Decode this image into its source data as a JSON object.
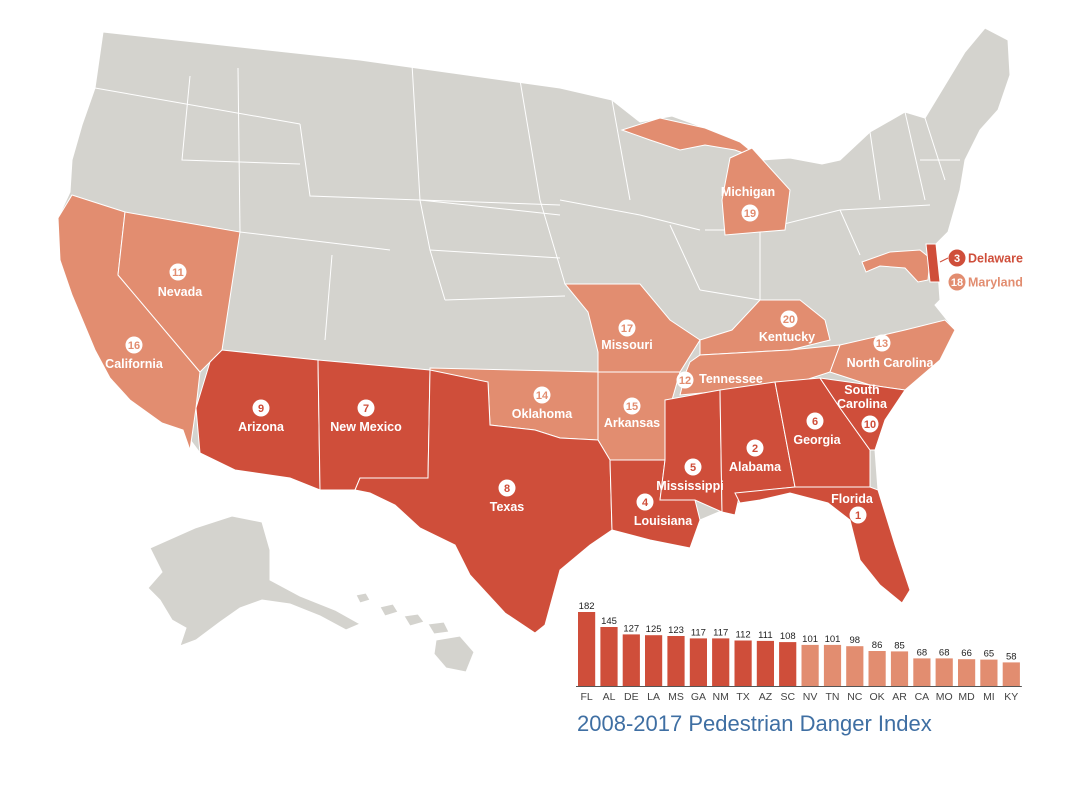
{
  "colors": {
    "background": "#ffffff",
    "land_gray": "#d4d3ce",
    "border": "#ffffff",
    "dark_red": "#cf4e3a",
    "light_salmon": "#e28d70",
    "title_blue": "#3f6fa3"
  },
  "map": {
    "states": [
      {
        "rank": "1",
        "name": "Florida"
      },
      {
        "rank": "2",
        "name": "Alabama"
      },
      {
        "rank": "3",
        "name": "Delaware"
      },
      {
        "rank": "4",
        "name": "Louisiana"
      },
      {
        "rank": "5",
        "name": "Mississippi"
      },
      {
        "rank": "6",
        "name": "Georgia"
      },
      {
        "rank": "7",
        "name": "New Mexico"
      },
      {
        "rank": "8",
        "name": "Texas"
      },
      {
        "rank": "9",
        "name": "Arizona"
      },
      {
        "rank": "10",
        "name": "South Carolina"
      },
      {
        "rank": "11",
        "name": "Nevada"
      },
      {
        "rank": "12",
        "name": "Tennessee"
      },
      {
        "rank": "13",
        "name": "North Carolina"
      },
      {
        "rank": "14",
        "name": "Oklahoma"
      },
      {
        "rank": "15",
        "name": "Arkansas"
      },
      {
        "rank": "16",
        "name": "California"
      },
      {
        "rank": "17",
        "name": "Missouri"
      },
      {
        "rank": "18",
        "name": "Maryland"
      },
      {
        "rank": "19",
        "name": "Michigan"
      },
      {
        "rank": "20",
        "name": "Kentucky"
      }
    ]
  },
  "chart_data": {
    "type": "bar",
    "title": "2008-2017 Pedestrian Danger Index",
    "categories": [
      "FL",
      "AL",
      "DE",
      "LA",
      "MS",
      "GA",
      "NM",
      "TX",
      "AZ",
      "SC",
      "NV",
      "TN",
      "NC",
      "OK",
      "AR",
      "CA",
      "MO",
      "MD",
      "MI",
      "KY"
    ],
    "values": [
      182,
      145,
      127,
      125,
      123,
      117,
      117,
      112,
      111,
      108,
      101,
      101,
      98,
      86,
      85,
      68,
      68,
      66,
      65,
      58
    ],
    "value_labels": true,
    "colors_by_rank": {
      "top_10": "#cf4e3a",
      "rank_11_to_20": "#e28d70"
    },
    "xlabel": "",
    "ylabel": "",
    "ylim": [
      0,
      182
    ],
    "grid": false
  }
}
